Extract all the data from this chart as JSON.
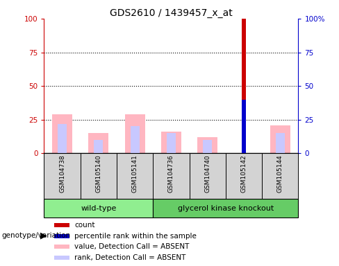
{
  "title": "GDS2610 / 1439457_x_at",
  "samples": [
    "GSM104738",
    "GSM105140",
    "GSM105141",
    "GSM104736",
    "GSM104740",
    "GSM105142",
    "GSM105144"
  ],
  "wt_count": 3,
  "gk_count": 4,
  "count_values": [
    0,
    0,
    0,
    0,
    0,
    100,
    0
  ],
  "percentile_rank_values": [
    0,
    0,
    0,
    0,
    0,
    40,
    0
  ],
  "absent_value_values": [
    29,
    15,
    29,
    16,
    12,
    0,
    21
  ],
  "absent_rank_values": [
    22,
    10,
    20,
    15,
    10,
    0,
    15
  ],
  "count_color": "#CC0000",
  "percentile_color": "#0000CC",
  "absent_value_color": "#FFB6C1",
  "absent_rank_color": "#C8C8FF",
  "ylim": [
    0,
    100
  ],
  "yticks": [
    0,
    25,
    50,
    75,
    100
  ],
  "ytick_labels_left": [
    "0",
    "25",
    "50",
    "75",
    "100"
  ],
  "ytick_labels_right": [
    "0",
    "25",
    "50",
    "75",
    "100%"
  ],
  "left_axis_color": "#CC0000",
  "right_axis_color": "#0000CC",
  "wt_color": "#90EE90",
  "gk_color": "#66CC66",
  "cell_bg": "#D3D3D3",
  "genotype_label": "genotype/variation",
  "legend_items": [
    {
      "label": "count",
      "color": "#CC0000"
    },
    {
      "label": "percentile rank within the sample",
      "color": "#0000CC"
    },
    {
      "label": "value, Detection Call = ABSENT",
      "color": "#FFB6C1"
    },
    {
      "label": "rank, Detection Call = ABSENT",
      "color": "#C8C8FF"
    }
  ]
}
